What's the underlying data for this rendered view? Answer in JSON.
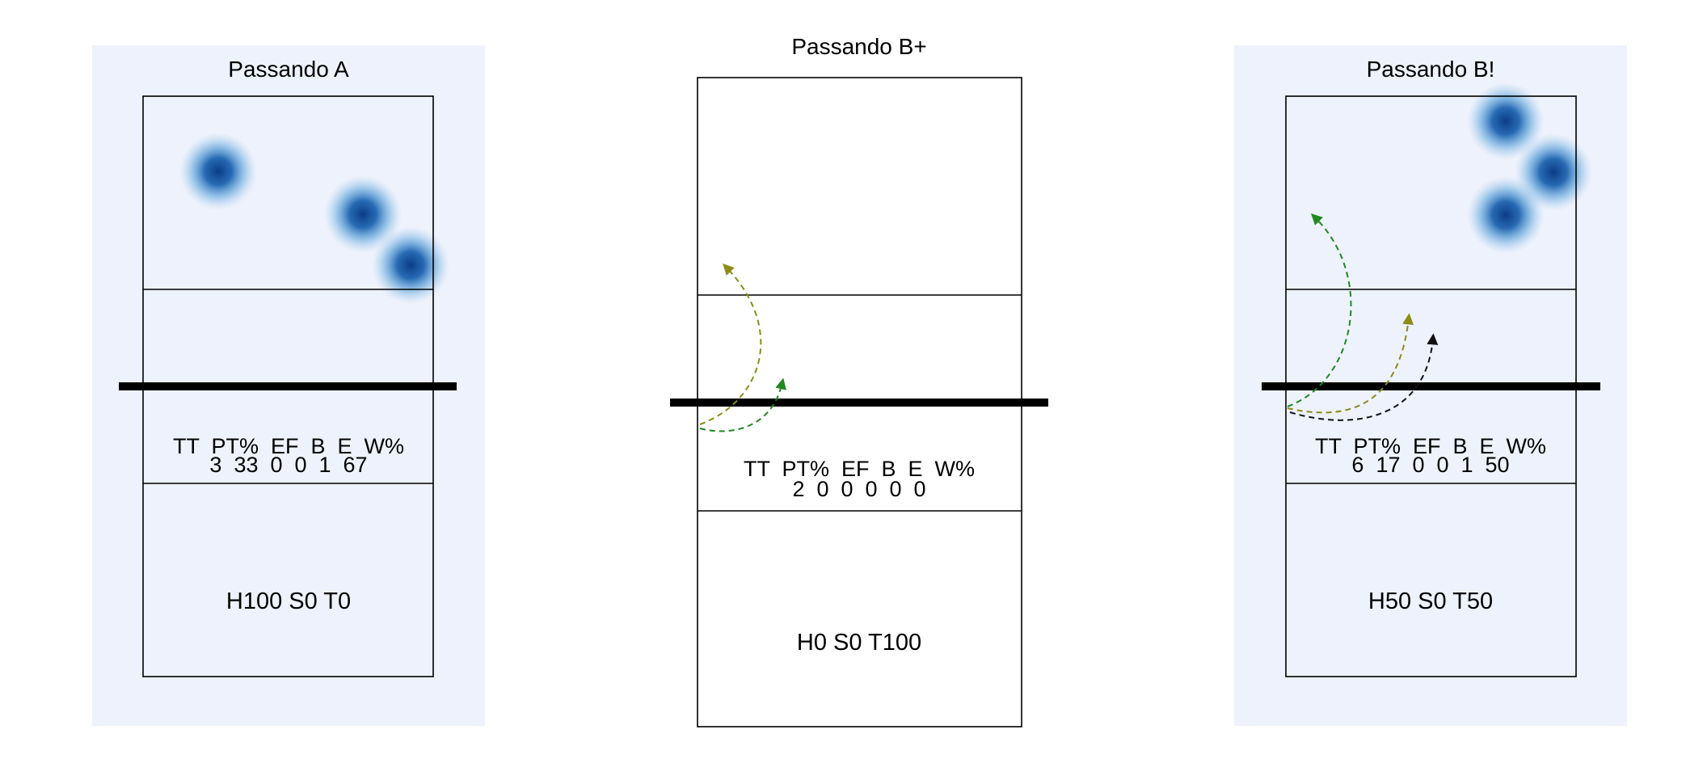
{
  "colors": {
    "panel_bg": "#eef2fc",
    "court_line": "#000000",
    "net": "#000000",
    "heat": "#2a78c2",
    "heat_core": "#0d3f8a",
    "arrow_green": "#1f8a1f",
    "arrow_olive": "#8c8c16",
    "arrow_black": "#111111"
  },
  "panels": [
    {
      "title": "Passando A",
      "highlighted": true,
      "stats": {
        "header": "TT  PT%  EF  B  E  W%",
        "values": "3  33  0  0  1  67"
      },
      "summary": "H100 S0 T0",
      "hotspots": [
        {
          "zone": "far-back-left",
          "intensity": 1
        },
        {
          "zone": "far-back-right-inner",
          "intensity": 1
        },
        {
          "zone": "far-right-attack-line",
          "intensity": 1
        }
      ],
      "trajectories": []
    },
    {
      "title": "Passando B+",
      "highlighted": false,
      "stats": {
        "header": "TT  PT%  EF  B  E  W%",
        "values": "2  0  0  0  0  0"
      },
      "summary": "H0 S0 T100",
      "hotspots": [],
      "trajectories": [
        {
          "color": "olive",
          "start": "near-left",
          "end": "far-left-attack-zone"
        },
        {
          "color": "green",
          "start": "near-left",
          "end": "net-center-left"
        }
      ]
    },
    {
      "title": "Passando B!",
      "highlighted": true,
      "stats": {
        "header": "TT  PT%  EF  B  E  W%",
        "values": "6  17  0  0  1  50"
      },
      "summary": "H50 S0 T50",
      "hotspots": [
        {
          "zone": "far-back-right",
          "intensity": 1
        },
        {
          "zone": "far-right-sideline",
          "intensity": 1
        },
        {
          "zone": "far-mid-right",
          "intensity": 1
        }
      ],
      "trajectories": [
        {
          "color": "green",
          "start": "near-left",
          "end": "far-left-deep"
        },
        {
          "color": "olive",
          "start": "near-left",
          "end": "far-center-attack-zone"
        },
        {
          "color": "black",
          "start": "near-left",
          "end": "far-right-attack-zone"
        }
      ]
    }
  ]
}
